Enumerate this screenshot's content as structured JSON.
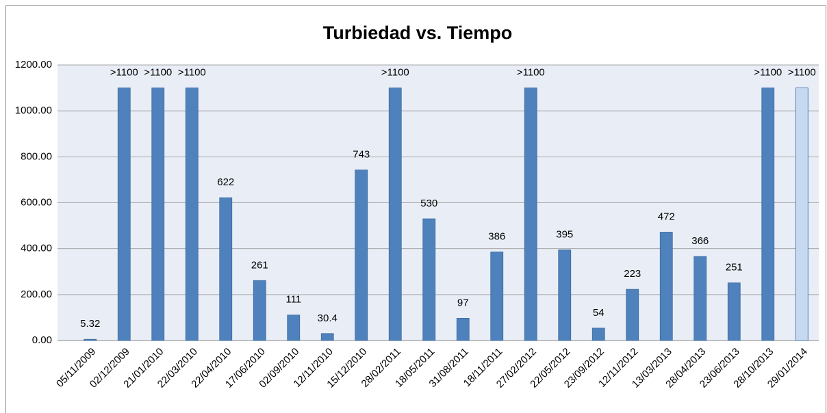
{
  "chart_data": {
    "type": "bar",
    "title": "Turbiedad vs. Tiempo",
    "categories": [
      "05/11/2009",
      "02/12/2009",
      "21/01/2010",
      "22/03/2010",
      "22/04/2010",
      "17/06/2010",
      "02/09/2010",
      "12/11/2010",
      "15/12/2010",
      "28/02/2011",
      "18/05/2011",
      "31/08/2011",
      "18/11/2011",
      "27/02/2012",
      "22/05/2012",
      "23/09/2012",
      "12/11/2012",
      "13/03/2013",
      "28/04/2013",
      "23/06/2013",
      "28/10/2013",
      "29/01/2014"
    ],
    "values": [
      5.32,
      1100,
      1100,
      1100,
      622,
      261,
      111,
      30.4,
      743,
      1100,
      530,
      97,
      386,
      1100,
      395,
      54,
      223,
      472,
      366,
      251,
      1100,
      1100
    ],
    "value_labels": [
      "5.32",
      ">1100",
      ">1100",
      ">1100",
      "622",
      "261",
      "111",
      "30.4",
      "743",
      ">1100",
      "530",
      "97",
      "386",
      ">1100",
      "395",
      "54",
      "223",
      "472",
      "366",
      "251",
      ">1100",
      ">1100"
    ],
    "colors": [
      "#4f81bd",
      "#4f81bd",
      "#4f81bd",
      "#4f81bd",
      "#4f81bd",
      "#4f81bd",
      "#4f81bd",
      "#4f81bd",
      "#4f81bd",
      "#4f81bd",
      "#4f81bd",
      "#4f81bd",
      "#4f81bd",
      "#4f81bd",
      "#4f81bd",
      "#4f81bd",
      "#4f81bd",
      "#4f81bd",
      "#4f81bd",
      "#4f81bd",
      "#4f81bd",
      "#c6d9f1"
    ],
    "ylim": [
      0,
      1200
    ],
    "yticks": [
      {
        "value": 0,
        "label": "0.00"
      },
      {
        "value": 200,
        "label": "200.00"
      },
      {
        "value": 400,
        "label": "400.00"
      },
      {
        "value": 600,
        "label": "600.00"
      },
      {
        "value": 800,
        "label": "800.00"
      },
      {
        "value": 1000,
        "label": "1000.00"
      },
      {
        "value": 1200,
        "label": "1200.00"
      }
    ],
    "grid": true
  }
}
